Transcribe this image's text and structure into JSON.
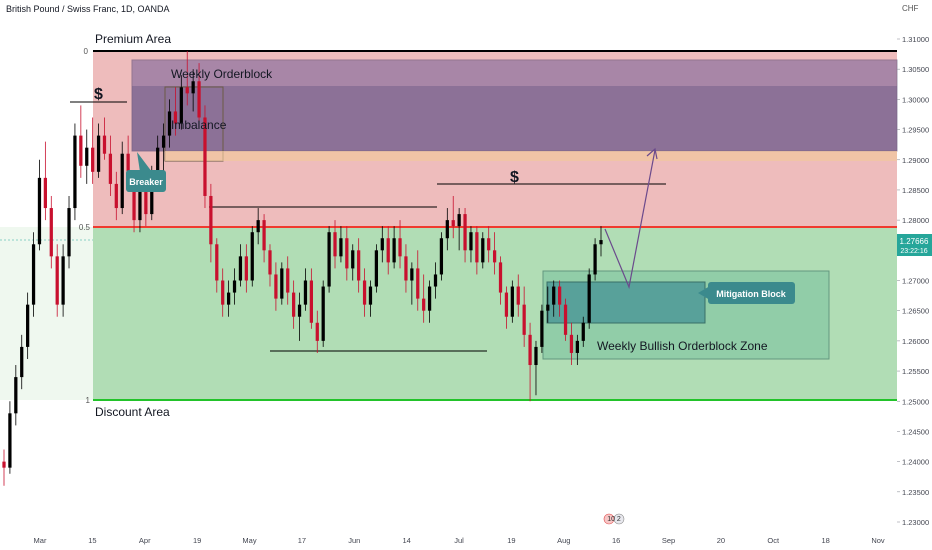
{
  "chart_data": {
    "type": "candlestick",
    "title": "British Pound / Swiss Franc, 1D, OANDA",
    "currency": "CHF",
    "y_ticks": [
      "1.31000",
      "1.30500",
      "1.30000",
      "1.29500",
      "1.29000",
      "1.28500",
      "1.28000",
      "1.27500",
      "1.27000",
      "1.26500",
      "1.26000",
      "1.25500",
      "1.25000",
      "1.24500",
      "1.24000",
      "1.23500",
      "1.23000"
    ],
    "x_ticks": [
      "Mar",
      "15",
      "Apr",
      "19",
      "May",
      "17",
      "Jun",
      "14",
      "Jul",
      "19",
      "Aug",
      "16",
      "Sep",
      "20",
      "Oct",
      "18",
      "Nov"
    ],
    "ylim": [
      1.23,
      1.315
    ],
    "last_price": "1.27666",
    "countdown": "23:22:16",
    "fib_labels": {
      "top": "0",
      "mid": "0.5",
      "bottom": "1"
    },
    "levels": {
      "premium_top": 1.3077,
      "equilibrium": 1.2792,
      "discount_bottom": 1.25
    },
    "annotations": {
      "premium": "Premium Area",
      "discount": "Discount Area",
      "weekly_ob": "Weekly Orderblock",
      "imbalance": "Imbalance",
      "breaker": "Breaker",
      "mitigation": "Mitigation Block",
      "bullish_zone": "Weekly Bullish Orderblock Zone",
      "liquidity_1": "$",
      "liquidity_2": "$"
    },
    "event_badge": "10 2",
    "colors": {
      "up": "#000000",
      "down": "#c8102e",
      "premium_fill": "#e8a6a6",
      "discount_fill": "#9ed4a2",
      "ob_fill": "#6f5b96",
      "mid_line": "#f03a2e",
      "bottom_line": "#22c32a",
      "teal": "#3b8a8d",
      "arrow": "#6b4a8c",
      "price_tag": "#26a69a"
    },
    "candles": [
      [
        1.24,
        1.242,
        1.236,
        1.239
      ],
      [
        1.239,
        1.25,
        1.238,
        1.248
      ],
      [
        1.248,
        1.256,
        1.246,
        1.254
      ],
      [
        1.254,
        1.261,
        1.252,
        1.259
      ],
      [
        1.259,
        1.268,
        1.257,
        1.266
      ],
      [
        1.266,
        1.278,
        1.264,
        1.276
      ],
      [
        1.276,
        1.29,
        1.275,
        1.287
      ],
      [
        1.287,
        1.293,
        1.28,
        1.282
      ],
      [
        1.282,
        1.284,
        1.272,
        1.274
      ],
      [
        1.274,
        1.276,
        1.264,
        1.266
      ],
      [
        1.266,
        1.276,
        1.264,
        1.274
      ],
      [
        1.274,
        1.284,
        1.272,
        1.282
      ],
      [
        1.282,
        1.296,
        1.28,
        1.294
      ],
      [
        1.294,
        1.299,
        1.287,
        1.289
      ],
      [
        1.289,
        1.295,
        1.286,
        1.292
      ],
      [
        1.292,
        1.297,
        1.286,
        1.288
      ],
      [
        1.288,
        1.296,
        1.287,
        1.294
      ],
      [
        1.294,
        1.297,
        1.29,
        1.291
      ],
      [
        1.291,
        1.294,
        1.284,
        1.286
      ],
      [
        1.286,
        1.288,
        1.28,
        1.282
      ],
      [
        1.282,
        1.293,
        1.281,
        1.291
      ],
      [
        1.291,
        1.294,
        1.286,
        1.287
      ],
      [
        1.287,
        1.288,
        1.278,
        1.28
      ],
      [
        1.28,
        1.287,
        1.278,
        1.285
      ],
      [
        1.285,
        1.287,
        1.279,
        1.281
      ],
      [
        1.281,
        1.289,
        1.28,
        1.287
      ],
      [
        1.287,
        1.294,
        1.286,
        1.292
      ],
      [
        1.292,
        1.296,
        1.288,
        1.294
      ],
      [
        1.294,
        1.3,
        1.292,
        1.298
      ],
      [
        1.298,
        1.302,
        1.294,
        1.296
      ],
      [
        1.296,
        1.304,
        1.295,
        1.302
      ],
      [
        1.302,
        1.308,
        1.299,
        1.301
      ],
      [
        1.301,
        1.305,
        1.298,
        1.303
      ],
      [
        1.303,
        1.306,
        1.296,
        1.297
      ],
      [
        1.297,
        1.299,
        1.282,
        1.284
      ],
      [
        1.284,
        1.286,
        1.273,
        1.276
      ],
      [
        1.276,
        1.277,
        1.268,
        1.27
      ],
      [
        1.27,
        1.272,
        1.264,
        1.266
      ],
      [
        1.266,
        1.27,
        1.264,
        1.268
      ],
      [
        1.268,
        1.272,
        1.266,
        1.27
      ],
      [
        1.27,
        1.276,
        1.269,
        1.274
      ],
      [
        1.274,
        1.276,
        1.268,
        1.27
      ],
      [
        1.27,
        1.279,
        1.269,
        1.278
      ],
      [
        1.278,
        1.282,
        1.276,
        1.28
      ],
      [
        1.28,
        1.281,
        1.273,
        1.275
      ],
      [
        1.275,
        1.276,
        1.269,
        1.271
      ],
      [
        1.271,
        1.273,
        1.265,
        1.267
      ],
      [
        1.267,
        1.273,
        1.266,
        1.272
      ],
      [
        1.272,
        1.274,
        1.266,
        1.268
      ],
      [
        1.268,
        1.27,
        1.262,
        1.264
      ],
      [
        1.264,
        1.268,
        1.26,
        1.266
      ],
      [
        1.266,
        1.272,
        1.265,
        1.27
      ],
      [
        1.27,
        1.272,
        1.262,
        1.263
      ],
      [
        1.263,
        1.265,
        1.258,
        1.26
      ],
      [
        1.26,
        1.27,
        1.259,
        1.269
      ],
      [
        1.269,
        1.279,
        1.268,
        1.278
      ],
      [
        1.278,
        1.28,
        1.272,
        1.274
      ],
      [
        1.274,
        1.279,
        1.273,
        1.277
      ],
      [
        1.277,
        1.279,
        1.27,
        1.272
      ],
      [
        1.272,
        1.276,
        1.27,
        1.275
      ],
      [
        1.275,
        1.277,
        1.268,
        1.27
      ],
      [
        1.27,
        1.272,
        1.264,
        1.266
      ],
      [
        1.266,
        1.27,
        1.264,
        1.269
      ],
      [
        1.269,
        1.276,
        1.268,
        1.275
      ],
      [
        1.275,
        1.279,
        1.273,
        1.277
      ],
      [
        1.277,
        1.279,
        1.271,
        1.273
      ],
      [
        1.273,
        1.279,
        1.272,
        1.277
      ],
      [
        1.277,
        1.28,
        1.272,
        1.274
      ],
      [
        1.274,
        1.276,
        1.268,
        1.27
      ],
      [
        1.27,
        1.273,
        1.266,
        1.272
      ],
      [
        1.272,
        1.275,
        1.265,
        1.267
      ],
      [
        1.267,
        1.271,
        1.263,
        1.265
      ],
      [
        1.265,
        1.27,
        1.263,
        1.269
      ],
      [
        1.269,
        1.273,
        1.267,
        1.271
      ],
      [
        1.271,
        1.278,
        1.27,
        1.277
      ],
      [
        1.277,
        1.282,
        1.275,
        1.28
      ],
      [
        1.28,
        1.284,
        1.277,
        1.279
      ],
      [
        1.279,
        1.282,
        1.275,
        1.281
      ],
      [
        1.281,
        1.282,
        1.273,
        1.275
      ],
      [
        1.275,
        1.279,
        1.273,
        1.278
      ],
      [
        1.278,
        1.279,
        1.271,
        1.273
      ],
      [
        1.273,
        1.278,
        1.272,
        1.277
      ],
      [
        1.277,
        1.279,
        1.273,
        1.275
      ],
      [
        1.275,
        1.278,
        1.271,
        1.273
      ],
      [
        1.273,
        1.274,
        1.266,
        1.268
      ],
      [
        1.268,
        1.269,
        1.262,
        1.264
      ],
      [
        1.264,
        1.27,
        1.263,
        1.269
      ],
      [
        1.269,
        1.271,
        1.264,
        1.266
      ],
      [
        1.266,
        1.269,
        1.259,
        1.261
      ],
      [
        1.261,
        1.263,
        1.25,
        1.256
      ],
      [
        1.256,
        1.26,
        1.251,
        1.259
      ],
      [
        1.259,
        1.266,
        1.258,
        1.265
      ],
      [
        1.265,
        1.269,
        1.263,
        1.266
      ],
      [
        1.266,
        1.27,
        1.264,
        1.269
      ],
      [
        1.269,
        1.27,
        1.264,
        1.266
      ],
      [
        1.266,
        1.267,
        1.26,
        1.261
      ],
      [
        1.261,
        1.263,
        1.256,
        1.258
      ],
      [
        1.258,
        1.261,
        1.256,
        1.26
      ],
      [
        1.26,
        1.264,
        1.259,
        1.263
      ],
      [
        1.263,
        1.272,
        1.262,
        1.271
      ],
      [
        1.271,
        1.277,
        1.27,
        1.276
      ],
      [
        1.276,
        1.279,
        1.274,
        1.2767
      ]
    ]
  }
}
